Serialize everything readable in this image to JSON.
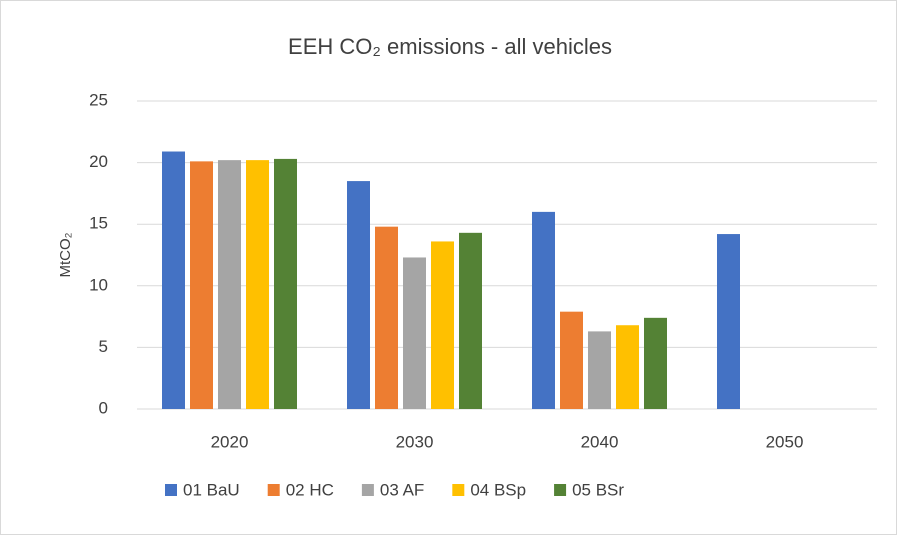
{
  "chart_data": {
    "type": "bar",
    "title": "EEH CO₂ emissions - all vehicles",
    "y_label": "MtCO₂",
    "categories": [
      "2020",
      "2030",
      "2040",
      "2050"
    ],
    "series": [
      {
        "name": "01 BaU",
        "color": "#4472c4",
        "values": [
          20.9,
          18.5,
          16.0,
          14.2
        ]
      },
      {
        "name": "02 HC",
        "color": "#ed7d31",
        "values": [
          20.1,
          14.8,
          7.9,
          null
        ]
      },
      {
        "name": "03 AF",
        "color": "#a5a5a5",
        "values": [
          20.2,
          12.3,
          6.3,
          null
        ]
      },
      {
        "name": "04 BSp",
        "color": "#ffc000",
        "values": [
          20.2,
          13.6,
          6.8,
          null
        ]
      },
      {
        "name": "05 BSr",
        "color": "#548235",
        "values": [
          20.3,
          14.3,
          7.4,
          null
        ]
      }
    ],
    "ylim": [
      0,
      25
    ],
    "yticks": [
      0,
      5,
      10,
      15,
      20,
      25
    ],
    "grid": true,
    "legend": "bottom"
  }
}
